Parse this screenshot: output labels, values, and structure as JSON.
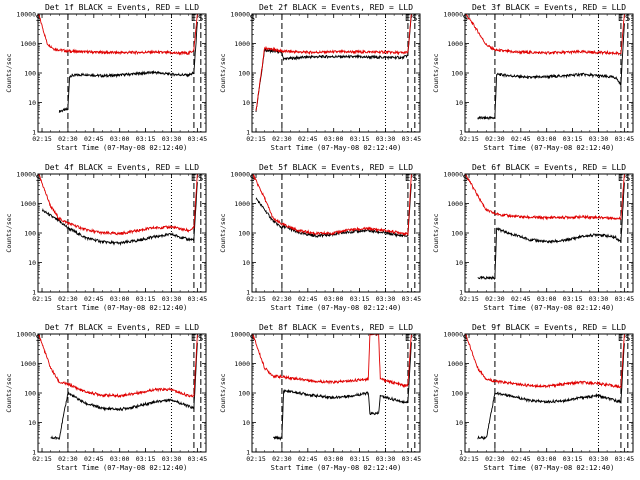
{
  "colors": {
    "events": "#000000",
    "lld": "#e00000",
    "axis": "#000000",
    "background": "#ffffff"
  },
  "chart_data": [
    {
      "type": "line",
      "title": "Det 1f BLACK = Events, RED = LLD",
      "xlabel": "Start Time (07-May-08 02:12:40)",
      "ylabel": "Counts/sec",
      "x_ticks": [
        "02:15",
        "02:30",
        "02:45",
        "03:00",
        "03:15",
        "03:30",
        "03:45"
      ],
      "y_ticks": [
        "1",
        "10",
        "100",
        "1000",
        "10000"
      ],
      "y_scale": "log",
      "ylim": [
        1,
        10000
      ],
      "xlim": [
        "02:12:40",
        "03:50"
      ],
      "markers": [
        {
          "label": "S",
          "time": "02:13"
        },
        {
          "label": "E",
          "time": "03:43"
        },
        {
          "label": "S",
          "time": "03:47"
        }
      ],
      "vlines": {
        "dashed": [
          "02:30",
          "03:43",
          "03:47"
        ],
        "dotted": [
          "03:30"
        ]
      },
      "series": [
        {
          "name": "Events",
          "x": [
            "02:25",
            "02:30",
            "02:31",
            "02:40",
            "02:50",
            "03:00",
            "03:10",
            "03:20",
            "03:30",
            "03:40",
            "03:43",
            "03:45"
          ],
          "values": [
            5,
            6,
            80,
            90,
            80,
            85,
            95,
            105,
            90,
            85,
            100,
            5000
          ]
        },
        {
          "name": "LLD",
          "x": [
            "02:13",
            "02:18",
            "02:22",
            "02:30",
            "02:40",
            "02:50",
            "03:00",
            "03:10",
            "03:20",
            "03:30",
            "03:40",
            "03:43",
            "03:45"
          ],
          "values": [
            10000,
            1000,
            650,
            550,
            520,
            500,
            490,
            500,
            510,
            480,
            470,
            600,
            10000
          ]
        }
      ]
    },
    {
      "type": "line",
      "title": "Det 2f BLACK = Events, RED = LLD",
      "xlabel": "Start Time (07-May-08 02:12:40)",
      "ylabel": "Counts/sec",
      "x_ticks": [
        "02:15",
        "02:30",
        "02:45",
        "03:00",
        "03:15",
        "03:30",
        "03:45"
      ],
      "y_ticks": [
        "1",
        "10",
        "100",
        "1000",
        "10000"
      ],
      "y_scale": "log",
      "ylim": [
        1,
        10000
      ],
      "xlim": [
        "02:12:40",
        "03:50"
      ],
      "markers": [
        {
          "label": "S",
          "time": "02:13"
        },
        {
          "label": "E",
          "time": "03:43"
        },
        {
          "label": "S",
          "time": "03:47"
        }
      ],
      "vlines": {
        "dashed": [
          "02:30",
          "03:43",
          "03:47"
        ],
        "dotted": [
          "03:30"
        ]
      },
      "series": [
        {
          "name": "Events",
          "x": [
            "02:15",
            "02:20",
            "02:30",
            "02:31",
            "02:45",
            "03:00",
            "03:15",
            "03:30",
            "03:40",
            "03:43",
            "03:45"
          ],
          "values": [
            5,
            600,
            500,
            300,
            350,
            360,
            350,
            340,
            330,
            400,
            10000
          ]
        },
        {
          "name": "LLD",
          "x": [
            "02:15",
            "02:20",
            "02:30",
            "02:45",
            "03:00",
            "03:15",
            "03:30",
            "03:40",
            "03:43",
            "03:45"
          ],
          "values": [
            5,
            700,
            550,
            500,
            520,
            520,
            510,
            480,
            500,
            10000
          ]
        }
      ]
    },
    {
      "type": "line",
      "title": "Det 3f BLACK = Events, RED = LLD",
      "xlabel": "Start Time (07-May-08 02:12:40)",
      "ylabel": "Counts/sec",
      "x_ticks": [
        "02:15",
        "02:30",
        "02:45",
        "03:00",
        "03:15",
        "03:30",
        "03:45"
      ],
      "y_ticks": [
        "1",
        "10",
        "100",
        "1000",
        "10000"
      ],
      "y_scale": "log",
      "ylim": [
        1,
        10000
      ],
      "xlim": [
        "02:12:40",
        "03:50"
      ],
      "markers": [
        {
          "label": "S",
          "time": "02:13"
        },
        {
          "label": "E",
          "time": "03:43"
        },
        {
          "label": "S",
          "time": "03:47"
        }
      ],
      "vlines": {
        "dashed": [
          "02:30",
          "03:43",
          "03:47"
        ],
        "dotted": [
          "03:30"
        ]
      },
      "series": [
        {
          "name": "Events",
          "x": [
            "02:20",
            "02:30",
            "02:31",
            "02:40",
            "02:50",
            "03:00",
            "03:10",
            "03:20",
            "03:30",
            "03:40",
            "03:43",
            "03:45"
          ],
          "values": [
            3,
            3,
            90,
            80,
            70,
            75,
            80,
            90,
            80,
            70,
            40,
            5000
          ]
        },
        {
          "name": "LLD",
          "x": [
            "02:13",
            "02:18",
            "02:25",
            "02:30",
            "02:40",
            "02:50",
            "03:00",
            "03:10",
            "03:20",
            "03:30",
            "03:40",
            "03:43",
            "03:45"
          ],
          "values": [
            10000,
            4000,
            900,
            600,
            520,
            500,
            480,
            500,
            520,
            500,
            470,
            420,
            10000
          ]
        }
      ]
    },
    {
      "type": "line",
      "title": "Det 4f BLACK = Events, RED = LLD",
      "xlabel": "Start Time (07-May-08 02:12:40)",
      "ylabel": "Counts/sec",
      "x_ticks": [
        "02:15",
        "02:30",
        "02:45",
        "03:00",
        "03:15",
        "03:30",
        "03:45"
      ],
      "y_ticks": [
        "1",
        "10",
        "100",
        "1000",
        "10000"
      ],
      "y_scale": "log",
      "ylim": [
        1,
        10000
      ],
      "xlim": [
        "02:12:40",
        "03:50"
      ],
      "markers": [
        {
          "label": "S",
          "time": "02:13"
        },
        {
          "label": "E",
          "time": "03:43"
        },
        {
          "label": "S",
          "time": "03:47"
        }
      ],
      "vlines": {
        "dashed": [
          "02:30",
          "03:43",
          "03:47"
        ],
        "dotted": [
          "03:30"
        ]
      },
      "series": [
        {
          "name": "Events",
          "x": [
            "02:15",
            "02:25",
            "02:30",
            "02:40",
            "02:50",
            "03:00",
            "03:10",
            "03:20",
            "03:30",
            "03:40",
            "03:43",
            "03:45"
          ],
          "values": [
            600,
            250,
            150,
            70,
            50,
            45,
            55,
            75,
            90,
            60,
            60,
            5000
          ]
        },
        {
          "name": "LLD",
          "x": [
            "02:13",
            "02:20",
            "02:25",
            "02:30",
            "02:40",
            "02:50",
            "03:00",
            "03:10",
            "03:20",
            "03:30",
            "03:40",
            "03:43",
            "03:45"
          ],
          "values": [
            10000,
            800,
            300,
            220,
            130,
            100,
            95,
            120,
            150,
            160,
            120,
            150,
            10000
          ]
        }
      ]
    },
    {
      "type": "line",
      "title": "Det 5f BLACK = Events, RED = LLD",
      "xlabel": "Start Time (07-May-08 02:12:40)",
      "ylabel": "Counts/sec",
      "x_ticks": [
        "02:15",
        "02:30",
        "02:45",
        "03:00",
        "03:15",
        "03:30",
        "03:45"
      ],
      "y_ticks": [
        "1",
        "10",
        "100",
        "1000",
        "10000"
      ],
      "y_scale": "log",
      "ylim": [
        1,
        10000
      ],
      "xlim": [
        "02:12:40",
        "03:50"
      ],
      "markers": [
        {
          "label": "S",
          "time": "02:13"
        },
        {
          "label": "E",
          "time": "03:43"
        },
        {
          "label": "S",
          "time": "03:47"
        }
      ],
      "vlines": {
        "dashed": [
          "02:30",
          "03:43",
          "03:47"
        ],
        "dotted": [
          "03:30"
        ]
      },
      "series": [
        {
          "name": "Events",
          "x": [
            "02:15",
            "02:25",
            "02:30",
            "02:31",
            "02:40",
            "02:50",
            "03:00",
            "03:10",
            "03:20",
            "03:30",
            "03:40",
            "03:43",
            "03:45"
          ],
          "values": [
            1500,
            250,
            150,
            170,
            100,
            80,
            90,
            110,
            120,
            100,
            80,
            80,
            5000
          ]
        },
        {
          "name": "LLD",
          "x": [
            "02:13",
            "02:20",
            "02:25",
            "02:30",
            "02:40",
            "02:50",
            "03:00",
            "03:10",
            "03:20",
            "03:30",
            "03:40",
            "03:43",
            "03:45"
          ],
          "values": [
            10000,
            1500,
            300,
            200,
            120,
            95,
            100,
            130,
            140,
            120,
            100,
            90,
            10000
          ]
        }
      ]
    },
    {
      "type": "line",
      "title": "Det 6f BLACK = Events, RED = LLD",
      "xlabel": "Start Time (07-May-08 02:12:40)",
      "ylabel": "Counts/sec",
      "x_ticks": [
        "02:15",
        "02:30",
        "02:45",
        "03:00",
        "03:15",
        "03:30",
        "03:45"
      ],
      "y_ticks": [
        "1",
        "10",
        "100",
        "1000",
        "10000"
      ],
      "y_scale": "log",
      "ylim": [
        1,
        10000
      ],
      "xlim": [
        "02:12:40",
        "03:50"
      ],
      "markers": [
        {
          "label": "S",
          "time": "02:13"
        },
        {
          "label": "E",
          "time": "03:43"
        },
        {
          "label": "S",
          "time": "03:47"
        }
      ],
      "vlines": {
        "dashed": [
          "02:30",
          "03:43",
          "03:47"
        ],
        "dotted": [
          "03:30"
        ]
      },
      "series": [
        {
          "name": "Events",
          "x": [
            "02:20",
            "02:30",
            "02:31",
            "02:40",
            "02:50",
            "03:00",
            "03:10",
            "03:20",
            "03:30",
            "03:40",
            "03:43",
            "03:45"
          ],
          "values": [
            3,
            3,
            140,
            90,
            60,
            50,
            55,
            75,
            90,
            70,
            50,
            5000
          ]
        },
        {
          "name": "LLD",
          "x": [
            "02:13",
            "02:18",
            "02:25",
            "02:30",
            "02:40",
            "02:50",
            "03:00",
            "03:10",
            "03:20",
            "03:30",
            "03:40",
            "03:43",
            "03:45"
          ],
          "values": [
            10000,
            3000,
            600,
            450,
            370,
            340,
            330,
            340,
            350,
            340,
            320,
            300,
            10000
          ]
        }
      ]
    },
    {
      "type": "line",
      "title": "Det 7f BLACK = Events, RED = LLD",
      "xlabel": "Start Time (07-May-08 02:12:40)",
      "ylabel": "Counts/sec",
      "x_ticks": [
        "02:15",
        "02:30",
        "02:45",
        "03:00",
        "03:15",
        "03:30",
        "03:45"
      ],
      "y_ticks": [
        "1",
        "10",
        "100",
        "1000",
        "10000"
      ],
      "y_scale": "log",
      "ylim": [
        1,
        10000
      ],
      "xlim": [
        "02:12:40",
        "03:50"
      ],
      "markers": [
        {
          "label": "S",
          "time": "02:13"
        },
        {
          "label": "E",
          "time": "03:43"
        },
        {
          "label": "S",
          "time": "03:47"
        }
      ],
      "vlines": {
        "dashed": [
          "02:30",
          "03:43",
          "03:47"
        ],
        "dotted": [
          "03:30"
        ]
      },
      "series": [
        {
          "name": "Events",
          "x": [
            "02:20",
            "02:25",
            "02:30",
            "02:40",
            "02:50",
            "03:00",
            "03:10",
            "03:20",
            "03:30",
            "03:40",
            "03:43",
            "03:45"
          ],
          "values": [
            3,
            3,
            100,
            45,
            30,
            28,
            35,
            50,
            60,
            35,
            30,
            5000
          ]
        },
        {
          "name": "LLD",
          "x": [
            "02:13",
            "02:20",
            "02:25",
            "02:30",
            "02:40",
            "02:50",
            "03:00",
            "03:10",
            "03:20",
            "03:30",
            "03:40",
            "03:43",
            "03:45"
          ],
          "values": [
            10000,
            700,
            230,
            200,
            110,
            85,
            80,
            100,
            130,
            130,
            80,
            80,
            10000
          ]
        }
      ]
    },
    {
      "type": "line",
      "title": "Det 8f BLACK = Events, RED = LLD",
      "xlabel": "Start Time (07-May-08 02:12:40)",
      "ylabel": "Counts/sec",
      "x_ticks": [
        "02:15",
        "02:30",
        "02:45",
        "03:00",
        "03:15",
        "03:30",
        "03:45"
      ],
      "y_ticks": [
        "1",
        "10",
        "100",
        "1000",
        "10000"
      ],
      "y_scale": "log",
      "ylim": [
        1,
        10000
      ],
      "xlim": [
        "02:12:40",
        "03:50"
      ],
      "markers": [
        {
          "label": "S",
          "time": "02:13"
        },
        {
          "label": "E",
          "time": "03:43"
        },
        {
          "label": "S",
          "time": "03:47"
        }
      ],
      "vlines": {
        "dashed": [
          "02:30",
          "03:43",
          "03:47"
        ],
        "dotted": [
          "03:30"
        ]
      },
      "series": [
        {
          "name": "Events",
          "x": [
            "02:25",
            "02:30",
            "02:31",
            "02:40",
            "02:50",
            "03:00",
            "03:10",
            "03:20",
            "03:21",
            "03:26",
            "03:27",
            "03:35",
            "03:40",
            "03:43",
            "03:45"
          ],
          "values": [
            3,
            3,
            120,
            100,
            80,
            70,
            80,
            100,
            20,
            20,
            80,
            60,
            50,
            50,
            5000
          ]
        },
        {
          "name": "LLD",
          "x": [
            "02:13",
            "02:20",
            "02:25",
            "02:30",
            "02:40",
            "02:50",
            "03:00",
            "03:10",
            "03:20",
            "03:21",
            "03:26",
            "03:27",
            "03:35",
            "03:40",
            "03:43",
            "03:45"
          ],
          "values": [
            10000,
            700,
            380,
            350,
            300,
            250,
            230,
            260,
            300,
            10000,
            10000,
            300,
            220,
            180,
            180,
            10000
          ]
        }
      ]
    },
    {
      "type": "line",
      "title": "Det 9f BLACK = Events, RED = LLD",
      "xlabel": "Start Time (07-May-08 02:12:40)",
      "ylabel": "Counts/sec",
      "x_ticks": [
        "02:15",
        "02:30",
        "02:45",
        "03:00",
        "03:15",
        "03:30",
        "03:45"
      ],
      "y_ticks": [
        "1",
        "10",
        "100",
        "1000",
        "10000"
      ],
      "y_scale": "log",
      "ylim": [
        1,
        10000
      ],
      "xlim": [
        "02:12:40",
        "03:50"
      ],
      "markers": [
        {
          "label": "S",
          "time": "02:13"
        },
        {
          "label": "E",
          "time": "03:43"
        },
        {
          "label": "S",
          "time": "03:47"
        }
      ],
      "vlines": {
        "dashed": [
          "02:30",
          "03:43",
          "03:47"
        ],
        "dotted": [
          "03:30"
        ]
      },
      "series": [
        {
          "name": "Events",
          "x": [
            "02:20",
            "02:25",
            "02:30",
            "02:40",
            "02:50",
            "03:00",
            "03:10",
            "03:20",
            "03:30",
            "03:40",
            "03:43",
            "03:45"
          ],
          "values": [
            3,
            3,
            100,
            80,
            55,
            50,
            55,
            70,
            80,
            55,
            50,
            5000
          ]
        },
        {
          "name": "LLD",
          "x": [
            "02:13",
            "02:20",
            "02:25",
            "02:30",
            "02:40",
            "02:50",
            "03:00",
            "03:10",
            "03:20",
            "03:30",
            "03:40",
            "03:43",
            "03:45"
          ],
          "values": [
            10000,
            700,
            300,
            250,
            210,
            180,
            170,
            200,
            230,
            210,
            170,
            160,
            10000
          ]
        }
      ]
    }
  ]
}
